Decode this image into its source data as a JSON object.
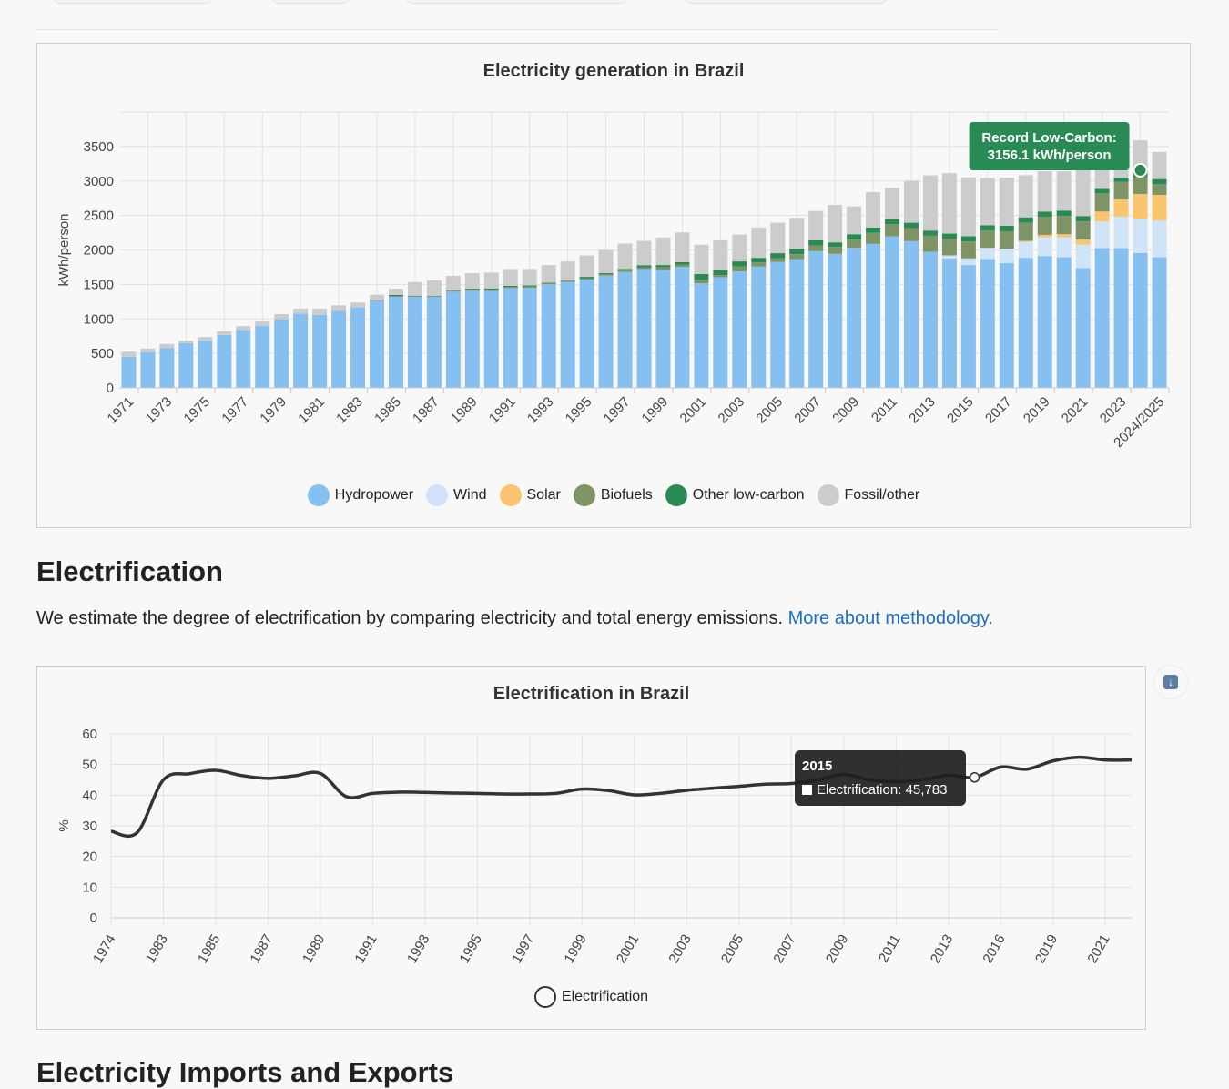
{
  "chart_data": [
    {
      "type": "bar",
      "stacked": true,
      "title": "Electricity generation in Brazil",
      "xlabel": "",
      "ylabel": "kWh/person",
      "ylim": [
        0,
        4000
      ],
      "y_ticks": [
        0,
        500,
        1000,
        1500,
        2000,
        2500,
        3000,
        3500
      ],
      "grid": true,
      "legend_position": "bottom-center",
      "categories": [
        "1971",
        "1972",
        "1973",
        "1974",
        "1975",
        "1976",
        "1977",
        "1978",
        "1979",
        "1980",
        "1981",
        "1982",
        "1983",
        "1984",
        "1985",
        "1986",
        "1987",
        "1988",
        "1989",
        "1990",
        "1991",
        "1992",
        "1993",
        "1994",
        "1995",
        "1996",
        "1997",
        "1998",
        "1999",
        "2000",
        "2001",
        "2002",
        "2003",
        "2004",
        "2005",
        "2006",
        "2007",
        "2008",
        "2009",
        "2010",
        "2011",
        "2012",
        "2013",
        "2014",
        "2015",
        "2016",
        "2017",
        "2018",
        "2019",
        "2020",
        "2021",
        "2022",
        "2023",
        "2024",
        "2024/2025"
      ],
      "series": [
        {
          "name": "Hydropower",
          "color": "#86c0f0",
          "values": [
            452,
            518,
            575,
            649,
            684,
            768,
            838,
            899,
            1000,
            1075,
            1057,
            1118,
            1167,
            1263,
            1320,
            1320,
            1320,
            1395,
            1408,
            1404,
            1447,
            1452,
            1504,
            1535,
            1570,
            1627,
            1680,
            1724,
            1711,
            1754,
            1518,
            1605,
            1689,
            1759,
            1825,
            1868,
            1982,
            1943,
            2031,
            2088,
            2197,
            2127,
            1974,
            1877,
            1781,
            1868,
            1811,
            1886,
            1912,
            1895,
            1737,
            2026,
            2026,
            1956,
            1895
          ]
        },
        {
          "name": "Wind",
          "color": "#cfe4f7",
          "values": [
            0,
            0,
            0,
            0,
            0,
            0,
            0,
            0,
            0,
            0,
            0,
            0,
            0,
            0,
            0,
            0,
            0,
            0,
            0,
            0,
            0,
            0,
            0,
            0,
            0,
            0,
            0,
            0,
            0,
            0,
            0,
            0,
            0,
            0,
            0,
            0,
            0,
            0,
            0,
            0,
            0,
            0,
            0,
            44,
            96,
            162,
            206,
            232,
            272,
            290,
            338,
            386,
            456,
            500,
            531
          ]
        },
        {
          "name": "Solar",
          "color": "#fbc46f",
          "values": [
            0,
            0,
            0,
            0,
            0,
            0,
            0,
            0,
            0,
            0,
            0,
            0,
            0,
            0,
            0,
            0,
            0,
            0,
            0,
            0,
            0,
            0,
            0,
            0,
            0,
            0,
            0,
            0,
            0,
            0,
            0,
            0,
            0,
            0,
            0,
            0,
            0,
            0,
            0,
            0,
            0,
            0,
            0,
            0,
            0,
            0,
            0,
            13,
            35,
            44,
            75,
            145,
            250,
            355,
            373
          ]
        },
        {
          "name": "Biofuels",
          "color": "#7f9466",
          "values": [
            0,
            0,
            0,
            0,
            0,
            0,
            0,
            0,
            0,
            0,
            0,
            0,
            0,
            10,
            12,
            12,
            12,
            15,
            15,
            15,
            18,
            18,
            20,
            20,
            20,
            22,
            25,
            25,
            35,
            35,
            53,
            31,
            70,
            61,
            53,
            70,
            83,
            101,
            118,
            162,
            175,
            189,
            232,
            241,
            246,
            250,
            254,
            263,
            263,
            263,
            263,
            263,
            254,
            241,
            154
          ]
        },
        {
          "name": "Other low-carbon",
          "color": "#2a8a55",
          "values": [
            0,
            0,
            0,
            0,
            0,
            0,
            0,
            0,
            0,
            0,
            0,
            0,
            0,
            0,
            15,
            5,
            3,
            5,
            15,
            20,
            15,
            15,
            5,
            5,
            20,
            15,
            20,
            30,
            35,
            35,
            79,
            70,
            75,
            66,
            75,
            79,
            75,
            66,
            79,
            75,
            75,
            79,
            75,
            75,
            75,
            79,
            79,
            79,
            75,
            79,
            79,
            66,
            66,
            104,
            75
          ]
        },
        {
          "name": "Fossil/other",
          "color": "#cccccc",
          "values": [
            74,
            52,
            61,
            35,
            53,
            52,
            57,
            75,
            70,
            74,
            92,
            79,
            70,
            78,
            92,
            198,
            222,
            208,
            224,
            232,
            244,
            239,
            252,
            273,
            311,
            332,
            367,
            353,
            399,
            430,
            425,
            434,
            390,
            439,
            442,
            448,
            426,
            544,
            404,
            513,
            452,
            609,
            802,
            877,
            855,
            685,
            698,
            610,
            583,
            569,
            708,
            414,
            348,
            432,
            393
          ]
        }
      ],
      "annotation": {
        "category": "2024",
        "line1": "Record Low-Carbon:",
        "line2": "3156.1 kWh/person",
        "color": "#2a8a55"
      }
    },
    {
      "type": "line",
      "title": "Electrification in Brazil",
      "xlabel": "",
      "ylabel": "%",
      "ylim": [
        0,
        60
      ],
      "y_ticks": [
        0,
        10,
        20,
        30,
        40,
        50,
        60
      ],
      "grid": true,
      "legend_position": "bottom-center",
      "categories": [
        "1974",
        "1980",
        "1983",
        "1984",
        "1985",
        "1986",
        "1987",
        "1988",
        "1989",
        "1990",
        "1991",
        "1992",
        "1993",
        "1994",
        "1995",
        "1996",
        "1997",
        "1998",
        "1999",
        "2000",
        "2001",
        "2002",
        "2003",
        "2004",
        "2005",
        "2006",
        "2007",
        "2008",
        "2009",
        "2010",
        "2011",
        "2012",
        "2013",
        "2015",
        "2016",
        "2018",
        "2019",
        "2020",
        "2021",
        "2022"
      ],
      "series": [
        {
          "name": "Electrification",
          "color": "#333333",
          "values": [
            28.2,
            27.8,
            45.0,
            47.0,
            48.1,
            46.4,
            45.5,
            46.3,
            47.1,
            39.5,
            40.6,
            41.0,
            40.9,
            40.7,
            40.6,
            40.4,
            40.4,
            40.6,
            42.0,
            41.5,
            40.1,
            40.6,
            41.6,
            42.3,
            42.9,
            43.6,
            43.8,
            45.0,
            46.8,
            45.0,
            44.4,
            45.0,
            46.5,
            45.8,
            49.2,
            48.5,
            51.2,
            52.4,
            51.5,
            51.5
          ]
        }
      ],
      "tooltip": {
        "category": "2015",
        "title": "2015",
        "label": "Electrification: 45,783"
      }
    }
  ],
  "section": {
    "heading": "Electrification",
    "text": "We estimate the degree of electrification by comparing electricity and total energy emissions. ",
    "link": "More about methodology."
  },
  "download_icon": "download-icon",
  "next_heading": "Electricity Imports and Exports"
}
